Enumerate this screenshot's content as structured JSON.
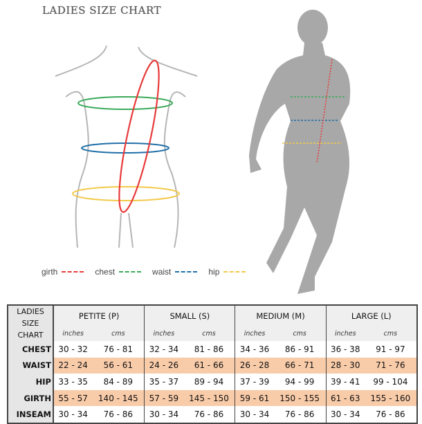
{
  "title": "LADIES SIZE CHART",
  "legend": [
    {
      "label": "girth",
      "color": "#e8393a"
    },
    {
      "label": "chest",
      "color": "#3aaa5a"
    },
    {
      "label": "waist",
      "color": "#1f6fa8"
    },
    {
      "label": "hip",
      "color": "#f3c94a"
    }
  ],
  "table": {
    "corner": [
      "LADIES",
      "SIZE CHART"
    ],
    "sizes": [
      "PETITE (P)",
      "SMALL (S)",
      "MEDIUM (M)",
      "LARGE (L)"
    ],
    "units": [
      "inches",
      "cms"
    ],
    "highlight_color": "#f8cba9",
    "rows": [
      {
        "label": "CHEST",
        "values": [
          "30 - 32",
          "76 - 81",
          "32 - 34",
          "81 - 86",
          "34 - 36",
          "86 - 91",
          "36 - 38",
          "91 - 97"
        ]
      },
      {
        "label": "WAIST",
        "values": [
          "22 - 24",
          "56 - 61",
          "24 - 26",
          "61 - 66",
          "26 - 28",
          "66 - 71",
          "28 - 30",
          "71 - 76"
        ]
      },
      {
        "label": "HIP",
        "values": [
          "33 - 35",
          "84 - 89",
          "35 - 37",
          "89 - 94",
          "37 - 39",
          "94 - 99",
          "39 - 41",
          "99 - 104"
        ]
      },
      {
        "label": "GIRTH",
        "values": [
          "55 - 57",
          "140 - 145",
          "57 - 59",
          "145 - 150",
          "59 - 61",
          "150 - 155",
          "61 - 63",
          "155 - 160"
        ]
      },
      {
        "label": "INSEAM",
        "values": [
          "30 - 34",
          "76 - 86",
          "30 - 34",
          "76 - 86",
          "30 - 34",
          "76 - 86",
          "30 - 34",
          "76 - 86"
        ]
      }
    ]
  }
}
